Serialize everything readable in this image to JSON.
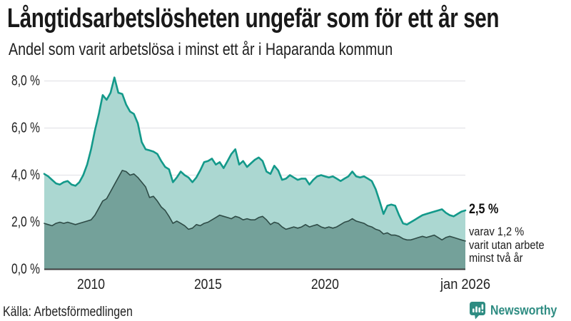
{
  "header": {
    "title": "Långtidsarbetslösheten ungefär som för ett år sen",
    "subtitle": "Andel som varit arbetslösa i minst ett år i Haparanda kommun"
  },
  "chart_data": {
    "type": "area",
    "title": "Långtidsarbetslösheten ungefär som för ett år sen",
    "subtitle": "Andel som varit arbetslösa i minst ett år i Haparanda kommun",
    "x_start": 2008,
    "x_end": 2026,
    "ylim": [
      0,
      8.5
    ],
    "grid": "horizontal-only",
    "yticks": [
      {
        "value": 8,
        "label": "8,0 %"
      },
      {
        "value": 6,
        "label": "6,0 %"
      },
      {
        "value": 4,
        "label": "4,0 %"
      },
      {
        "value": 2,
        "label": "2,0 %"
      },
      {
        "value": 0,
        "label": "0,0 %"
      }
    ],
    "xticks": [
      {
        "value": 2010,
        "label": "2010"
      },
      {
        "value": 2015,
        "label": "2015"
      },
      {
        "value": 2020,
        "label": "2020"
      },
      {
        "value": 2026,
        "label": "jan 2026"
      }
    ],
    "series": [
      {
        "name": "Arbetslösa minst ett år",
        "end_value_pct": 2.5,
        "line_color": "#13998a",
        "fill_color": "#abd7d1",
        "line_width": 2.6,
        "values": [
          4.05,
          3.95,
          3.8,
          3.65,
          3.6,
          3.7,
          3.75,
          3.6,
          3.55,
          3.7,
          4.0,
          4.45,
          5.1,
          5.9,
          6.6,
          7.4,
          7.2,
          7.5,
          8.15,
          7.5,
          7.45,
          7.0,
          6.7,
          6.6,
          6.2,
          5.4,
          5.1,
          5.05,
          5.0,
          4.9,
          4.6,
          4.35,
          4.25,
          3.7,
          3.9,
          4.15,
          4.0,
          3.9,
          3.7,
          3.9,
          4.2,
          4.55,
          4.6,
          4.7,
          4.45,
          4.55,
          4.3,
          4.6,
          4.9,
          5.1,
          4.45,
          4.6,
          4.35,
          4.5,
          4.65,
          4.75,
          4.6,
          4.15,
          4.05,
          4.4,
          4.2,
          3.8,
          3.85,
          4.0,
          3.9,
          3.8,
          3.85,
          3.85,
          3.6,
          3.8,
          3.95,
          4.0,
          3.95,
          3.9,
          3.95,
          3.85,
          3.75,
          3.85,
          3.95,
          4.15,
          3.95,
          3.9,
          3.95,
          3.85,
          3.75,
          3.4,
          2.9,
          2.35,
          2.7,
          2.75,
          2.7,
          2.3,
          1.95,
          1.9,
          2.0,
          2.1,
          2.2,
          2.3,
          2.35,
          2.4,
          2.45,
          2.5,
          2.55,
          2.4,
          2.3,
          2.25,
          2.35,
          2.45,
          2.5
        ]
      },
      {
        "name": "Varav utan arbete minst två år",
        "end_value_pct": 1.2,
        "line_color": "#2e4b46",
        "fill_color": "#74a19a",
        "line_width": 1.6,
        "values": [
          1.95,
          1.9,
          1.85,
          1.95,
          2.0,
          1.95,
          2.0,
          1.95,
          1.9,
          1.95,
          2.0,
          2.05,
          2.1,
          2.3,
          2.6,
          2.9,
          3.0,
          3.3,
          3.6,
          3.9,
          4.2,
          4.15,
          4.0,
          4.05,
          3.9,
          3.7,
          3.5,
          3.05,
          3.1,
          2.9,
          2.65,
          2.5,
          2.25,
          1.95,
          2.05,
          1.95,
          1.85,
          1.7,
          1.75,
          1.9,
          1.85,
          1.95,
          2.0,
          2.1,
          2.2,
          2.3,
          2.25,
          2.2,
          2.15,
          2.25,
          2.2,
          2.1,
          2.15,
          2.1,
          2.1,
          2.2,
          2.25,
          2.1,
          1.9,
          2.0,
          1.95,
          1.8,
          1.7,
          1.75,
          1.8,
          1.75,
          1.8,
          1.9,
          1.8,
          1.85,
          1.9,
          1.8,
          1.75,
          1.8,
          1.75,
          1.8,
          1.9,
          2.0,
          2.05,
          2.15,
          2.05,
          2.0,
          1.95,
          1.85,
          1.8,
          1.7,
          1.65,
          1.5,
          1.55,
          1.45,
          1.45,
          1.4,
          1.3,
          1.25,
          1.25,
          1.3,
          1.35,
          1.4,
          1.35,
          1.4,
          1.45,
          1.35,
          1.25,
          1.35,
          1.4,
          1.35,
          1.3,
          1.25,
          1.2
        ]
      }
    ],
    "colors": {
      "gridline": "#e4e4e8",
      "axis": "#3d3d3d",
      "tick_text": "#222222"
    }
  },
  "annotation": {
    "value": "2,5 %",
    "lines": [
      "varav 1,2 %",
      "varit utan arbete",
      "minst två år"
    ]
  },
  "footer": {
    "source": "Källa: Arbetsförmedlingen",
    "brand": "Newsworthy",
    "brand_color": "#2e8c82",
    "brand_icon": "newsworthy-bar-chart-bubble-icon"
  }
}
